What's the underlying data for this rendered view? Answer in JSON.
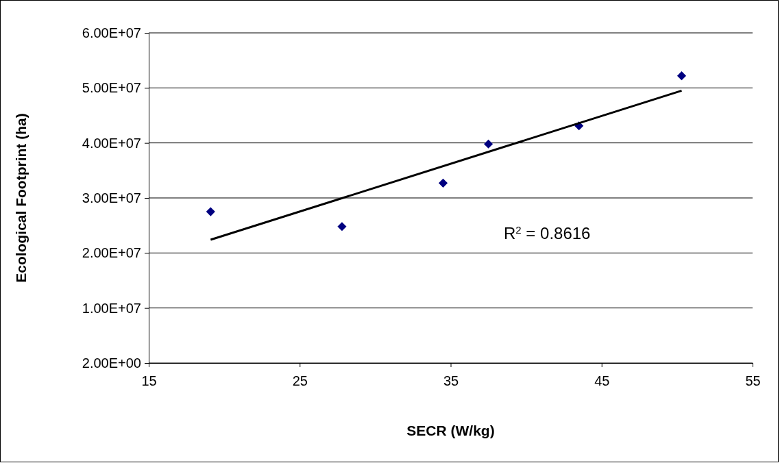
{
  "chart_data": {
    "type": "scatter",
    "xlabel": "SECR (W/kg)",
    "ylabel": "Ecological Footprint (ha)",
    "xlim": [
      15,
      55
    ],
    "xticks": [
      15,
      25,
      35,
      45,
      55
    ],
    "ylim": [
      0,
      60000000
    ],
    "yticks": [
      {
        "value": 2,
        "label": "2.00E+00"
      },
      {
        "value": 10000000,
        "label": "1.00E+07"
      },
      {
        "value": 20000000,
        "label": "2.00E+07"
      },
      {
        "value": 30000000,
        "label": "3.00E+07"
      },
      {
        "value": 40000000,
        "label": "4.00E+07"
      },
      {
        "value": 50000000,
        "label": "5.00E+07"
      },
      {
        "value": 60000000,
        "label": "6.00E+07"
      }
    ],
    "grid": "y",
    "series": [
      {
        "color": "#000080",
        "marker": "diamond",
        "x": [
          19.1,
          27.8,
          34.5,
          37.5,
          43.5,
          50.3
        ],
        "values": [
          27500000,
          24800000,
          32700000,
          39800000,
          43100000,
          52200000
        ]
      },
      {
        "type": "line",
        "color": "#000000",
        "marker": "none",
        "line_style": "solid",
        "x": [
          19.1,
          50.3
        ],
        "values": [
          22400000,
          49500000
        ]
      }
    ],
    "annotations": [
      "R$^{2}$ = 0.8616"
    ]
  }
}
